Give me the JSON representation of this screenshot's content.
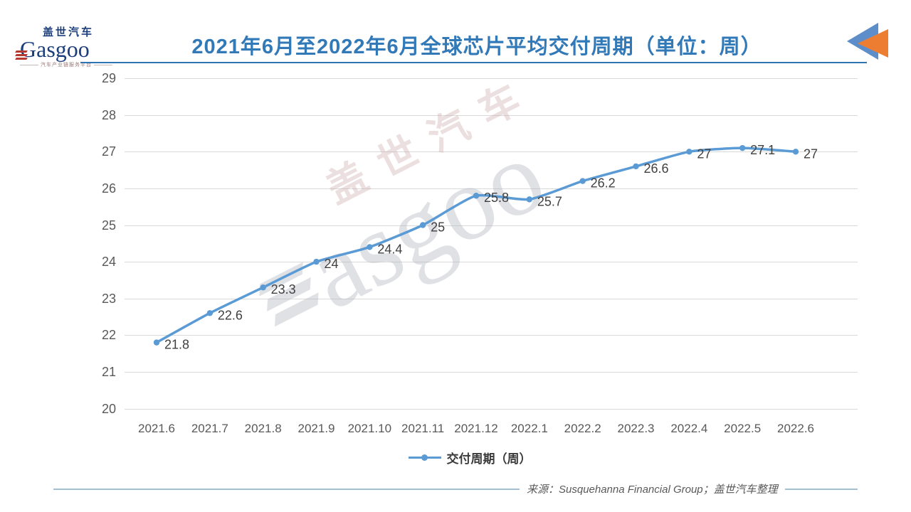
{
  "logo": {
    "cn": "盖世汽车",
    "en": "Gasgoo",
    "tagline": "汽车产业链服务平台"
  },
  "header": {
    "title": "2021年6月至2022年6月全球芯片平均交付周期（单位：周）",
    "accent_color": "#2e75b6"
  },
  "watermark": {
    "cn": "盖世汽车",
    "en": "asgoo"
  },
  "chart_data": {
    "type": "line",
    "title": "2021年6月至2022年6月全球芯片平均交付周期（单位：周）",
    "categories": [
      "2021.6",
      "2021.7",
      "2021.8",
      "2021.9",
      "2021.10",
      "2021.11",
      "2021.12",
      "2022.1",
      "2022.2",
      "2022.3",
      "2022.4",
      "2022.5",
      "2022.6"
    ],
    "series": [
      {
        "name": "交付周期（周）",
        "values": [
          21.8,
          22.6,
          23.3,
          24,
          24.4,
          25,
          25.8,
          25.7,
          26.2,
          26.6,
          27,
          27.1,
          27
        ]
      }
    ],
    "ylim": [
      20,
      29
    ],
    "ytick_step": 1,
    "grid": true,
    "legend_position": "bottom",
    "line_color": "#5b9bd5",
    "grid_color": "#d9d9d9",
    "axis_label_color": "#595959",
    "data_label_color": "#404040"
  },
  "footer": {
    "source": "来源：Susquehanna Financial Group；盖世汽车整理"
  }
}
